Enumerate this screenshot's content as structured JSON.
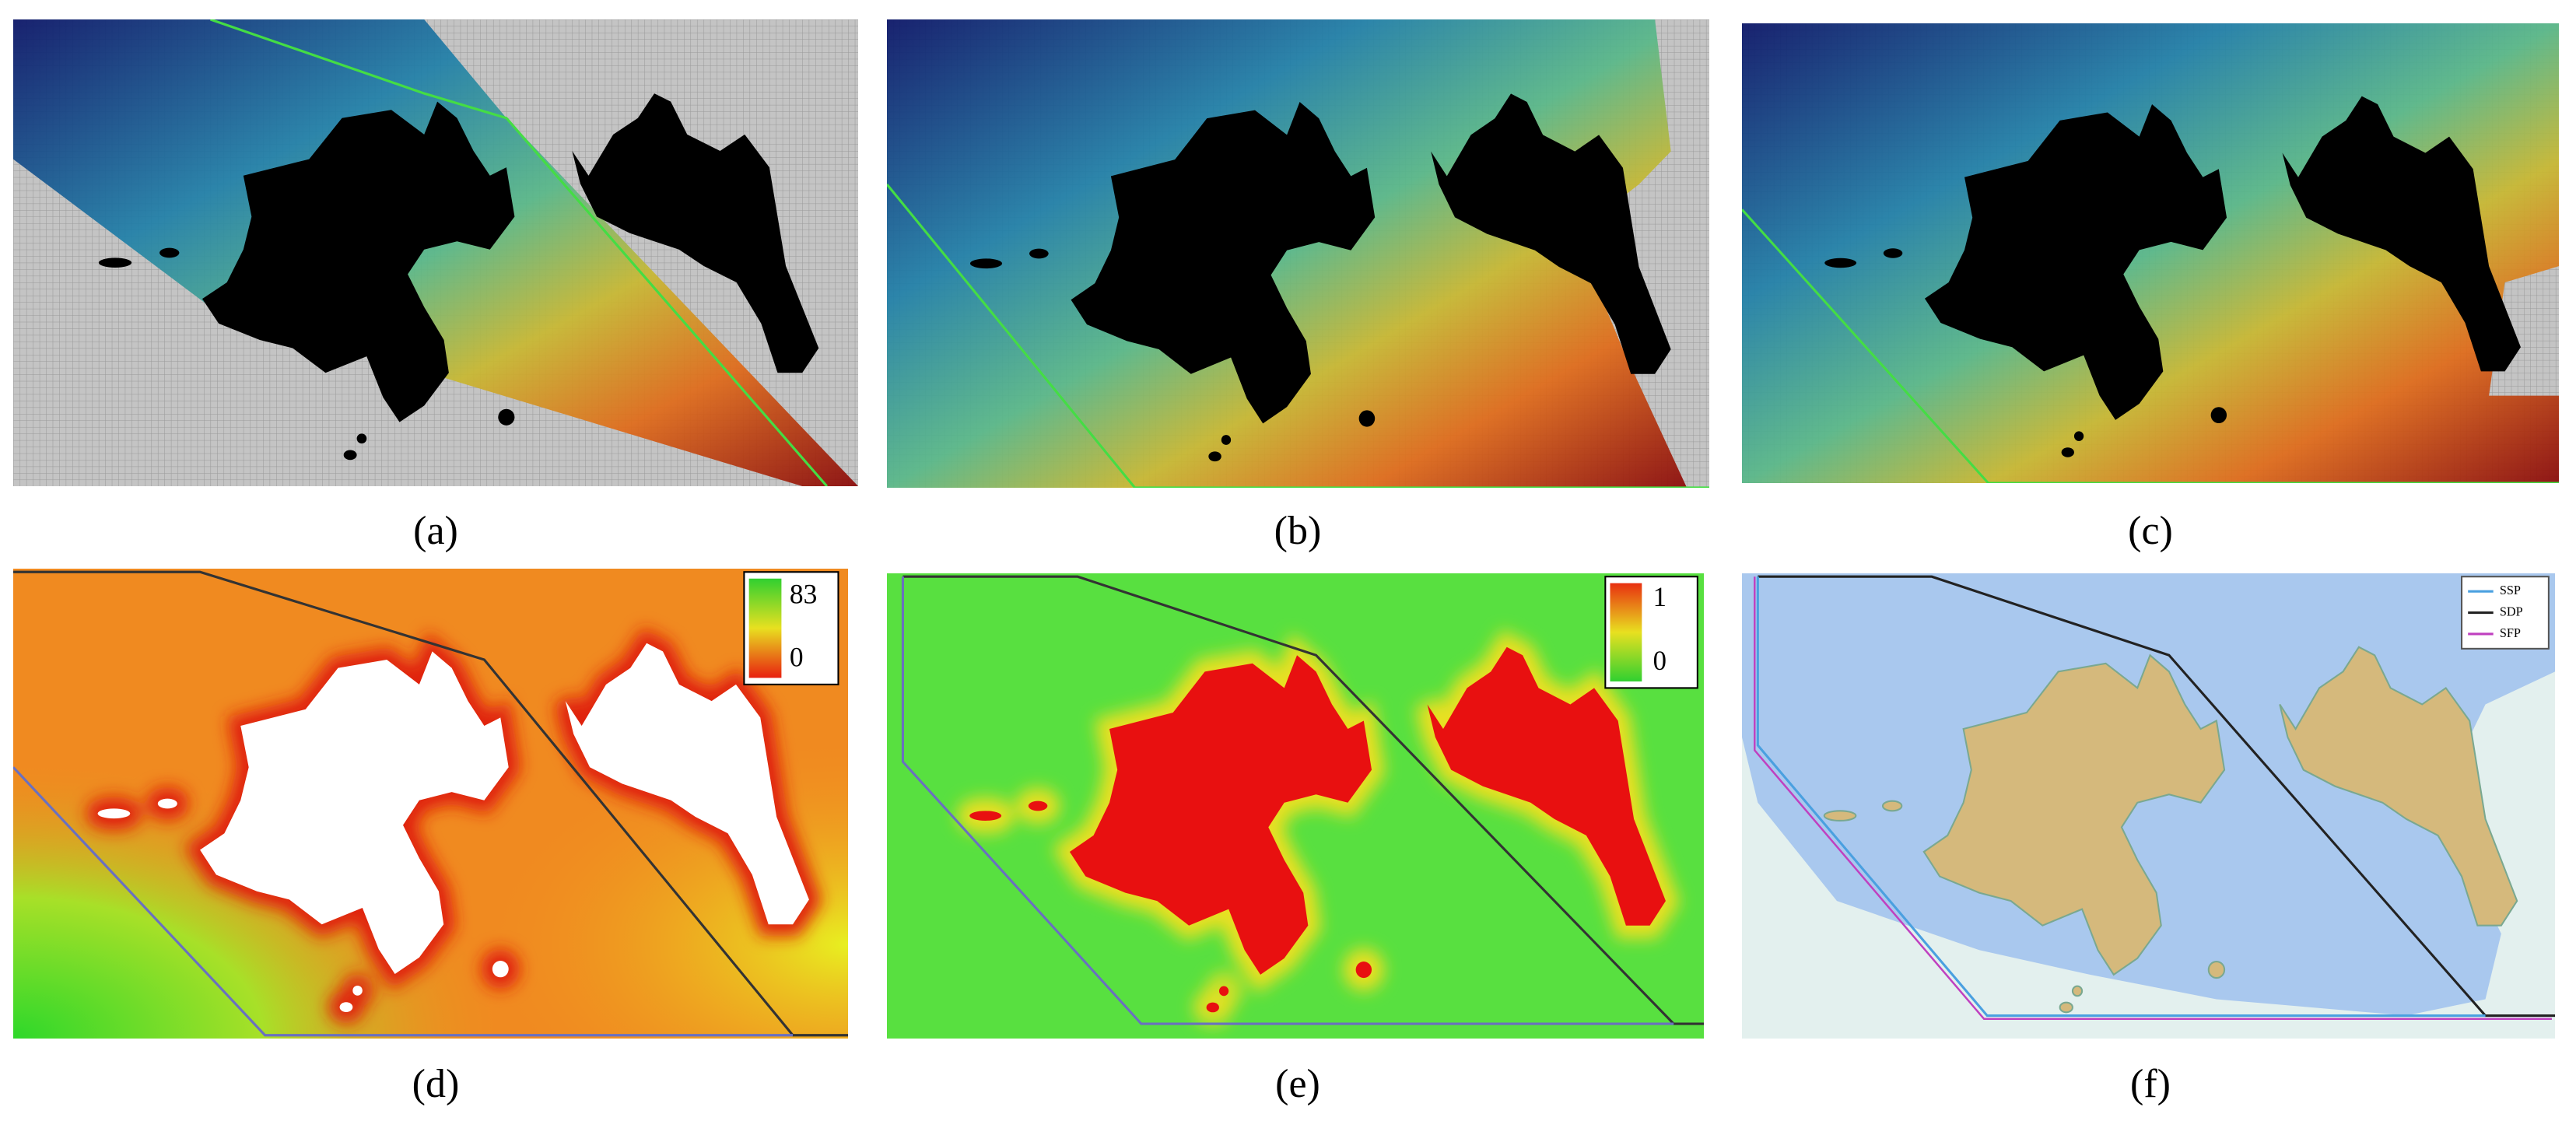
{
  "panels": [
    {
      "caption": "(a)"
    },
    {
      "caption": "(b)"
    },
    {
      "caption": "(c)"
    },
    {
      "caption": "(d)",
      "colorbar": {
        "max": 83,
        "min": 0
      }
    },
    {
      "caption": "(e)",
      "colorbar": {
        "max": 1,
        "min": 0
      }
    },
    {
      "caption": "(f)",
      "legend": [
        "SSP",
        "SDP",
        "SFP"
      ]
    }
  ]
}
